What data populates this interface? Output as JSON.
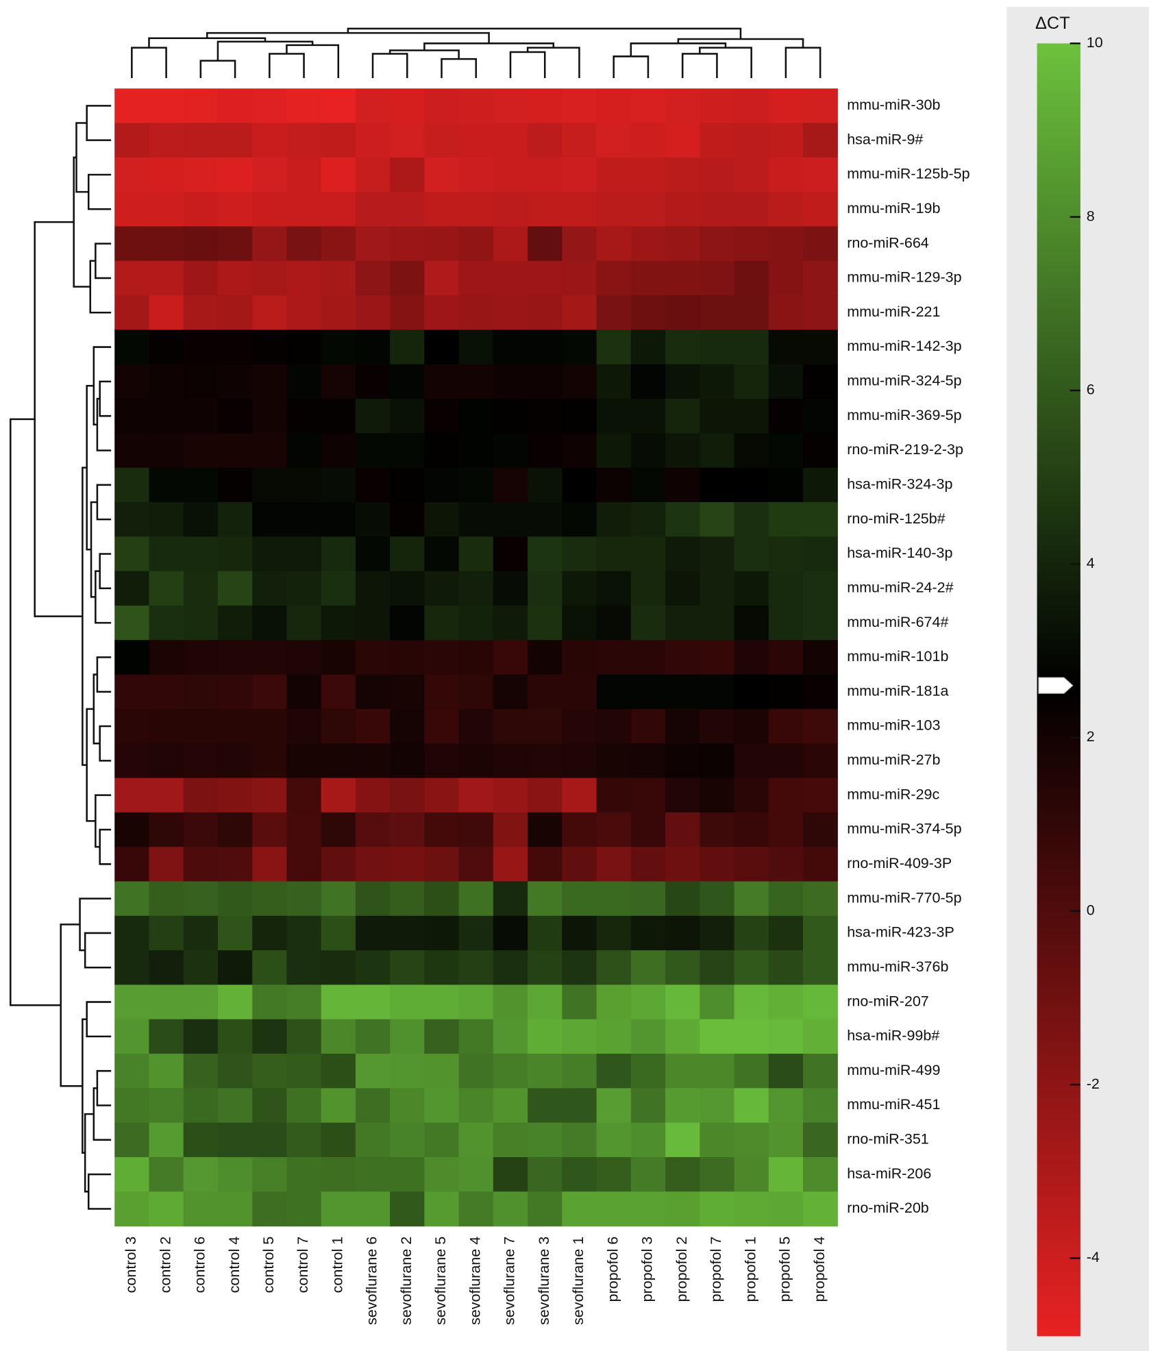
{
  "chart_data": {
    "type": "heatmap",
    "colorbar_label": "ΔCT",
    "columns": [
      "control 3",
      "control 2",
      "control 6",
      "control 4",
      "control 5",
      "control 7",
      "control 1",
      "sevoflurane 6",
      "sevoflurane 2",
      "sevoflurane 5",
      "sevoflurane 4",
      "sevoflurane 7",
      "sevoflurane 3",
      "sevoflurane 1",
      "propofol 6",
      "propofol 3",
      "propofol 2",
      "propofol 7",
      "propofol 1",
      "propofol 5",
      "propofol 4"
    ],
    "rows": [
      "mmu-miR-30b",
      "hsa-miR-9#",
      "mmu-miR-125b-5p",
      "mmu-miR-19b",
      "rno-miR-664",
      "mmu-miR-129-3p",
      "mmu-miR-221",
      "mmu-miR-142-3p",
      "mmu-miR-324-5p",
      "mmu-miR-369-5p",
      "rno-miR-219-2-3p",
      "hsa-miR-324-3p",
      "rno-miR-125b#",
      "hsa-miR-140-3p",
      "mmu-miR-24-2#",
      "mmu-miR-674#",
      "mmu-miR-101b",
      "mmu-miR-181a",
      "mmu-miR-103",
      "mmu-miR-27b",
      "mmu-miR-29c",
      "mmu-miR-374-5p",
      "rno-miR-409-3P",
      "mmu-miR-770-5p",
      "hsa-miR-423-3P",
      "mmu-miR-376b",
      "rno-miR-207",
      "hsa-miR-99b#",
      "mmu-miR-499",
      "mmu-miR-451",
      "rno-miR-351",
      "hsa-miR-206",
      "rno-miR-20b"
    ],
    "values": [
      [
        -4.8,
        -4.8,
        -4.7,
        -4.5,
        -4.6,
        -4.8,
        -4.9,
        -4.2,
        -4.3,
        -4.0,
        -4.1,
        -4.2,
        -4.3,
        -4.4,
        -4.3,
        -4.4,
        -4.2,
        -4.1,
        -4.0,
        -4.3,
        -4.2
      ],
      [
        -3.2,
        -3.5,
        -3.4,
        -3.4,
        -3.9,
        -3.7,
        -3.6,
        -4.0,
        -4.2,
        -3.8,
        -3.9,
        -3.9,
        -3.5,
        -3.8,
        -4.2,
        -4.1,
        -4.3,
        -3.6,
        -3.5,
        -3.6,
        -2.8
      ],
      [
        -4.2,
        -4.3,
        -4.4,
        -4.5,
        -4.2,
        -3.9,
        -4.5,
        -3.8,
        -3.0,
        -4.2,
        -4.0,
        -3.9,
        -3.9,
        -4.0,
        -3.6,
        -3.6,
        -3.4,
        -3.3,
        -3.5,
        -3.9,
        -4.0
      ],
      [
        -4.1,
        -4.1,
        -3.9,
        -4.1,
        -3.9,
        -3.9,
        -3.9,
        -3.3,
        -3.3,
        -3.6,
        -3.6,
        -3.5,
        -3.6,
        -3.6,
        -3.4,
        -3.4,
        -3.2,
        -3.1,
        -3.1,
        -3.4,
        -3.6
      ],
      [
        -1.0,
        -1.0,
        -0.8,
        -1.0,
        -2.2,
        -1.3,
        -1.8,
        -2.6,
        -2.4,
        -2.3,
        -2.1,
        -3.0,
        -0.6,
        -2.2,
        -2.8,
        -2.5,
        -2.3,
        -2.0,
        -1.8,
        -1.7,
        -1.4
      ],
      [
        -3.2,
        -3.2,
        -2.5,
        -3.0,
        -2.8,
        -3.0,
        -2.8,
        -2.0,
        -1.4,
        -3.1,
        -2.5,
        -2.5,
        -2.5,
        -2.4,
        -1.8,
        -1.6,
        -1.6,
        -1.5,
        -1.0,
        -1.7,
        -2.0
      ],
      [
        -2.7,
        -3.9,
        -2.8,
        -2.7,
        -3.4,
        -3.0,
        -2.7,
        -2.4,
        -1.7,
        -2.5,
        -2.3,
        -2.4,
        -2.3,
        -2.7,
        -1.3,
        -1.0,
        -0.8,
        -0.9,
        -0.9,
        -1.8,
        -2.0
      ],
      [
        2.9,
        2.4,
        2.3,
        2.3,
        2.4,
        2.5,
        2.9,
        2.8,
        4.0,
        2.6,
        3.2,
        2.8,
        2.8,
        2.9,
        4.5,
        3.5,
        4.3,
        4.2,
        4.2,
        3.0,
        3.0
      ],
      [
        2.0,
        2.1,
        2.2,
        2.1,
        2.0,
        2.8,
        1.9,
        2.3,
        2.8,
        2.0,
        2.0,
        2.1,
        2.1,
        2.0,
        3.5,
        2.8,
        3.3,
        3.5,
        4.0,
        3.2,
        2.5
      ],
      [
        2.1,
        2.1,
        2.1,
        2.3,
        2.0,
        2.4,
        2.4,
        3.6,
        3.2,
        2.3,
        2.7,
        2.5,
        2.4,
        2.5,
        3.3,
        3.3,
        4.0,
        3.4,
        3.4,
        2.4,
        2.8
      ],
      [
        2.0,
        2.0,
        1.8,
        1.8,
        1.8,
        2.8,
        2.1,
        2.9,
        2.9,
        2.5,
        2.7,
        2.8,
        2.3,
        2.1,
        3.5,
        3.1,
        3.4,
        3.7,
        3.0,
        2.9,
        2.4
      ],
      [
        4.3,
        2.9,
        2.9,
        2.4,
        3.0,
        3.0,
        3.1,
        2.3,
        2.5,
        2.8,
        2.9,
        1.9,
        3.3,
        2.6,
        2.2,
        2.9,
        2.1,
        2.6,
        2.6,
        2.7,
        3.5
      ],
      [
        3.8,
        3.7,
        3.2,
        3.9,
        2.8,
        2.8,
        2.8,
        3.1,
        2.4,
        3.4,
        3.1,
        3.1,
        3.1,
        2.9,
        3.7,
        3.9,
        4.6,
        5.2,
        4.4,
        4.8,
        4.8
      ],
      [
        5.0,
        4.2,
        4.2,
        4.1,
        3.6,
        3.6,
        4.2,
        2.9,
        4.0,
        2.9,
        4.3,
        2.3,
        4.6,
        4.3,
        4.1,
        4.1,
        3.6,
        3.8,
        4.4,
        4.3,
        4.2
      ],
      [
        3.7,
        5.0,
        4.3,
        5.2,
        3.8,
        3.9,
        4.4,
        3.4,
        3.3,
        3.6,
        3.8,
        3.1,
        4.4,
        3.5,
        3.3,
        4.1,
        3.4,
        3.8,
        3.5,
        4.2,
        4.4
      ],
      [
        5.8,
        4.4,
        4.3,
        3.7,
        3.2,
        4.1,
        3.5,
        3.4,
        2.8,
        4.1,
        3.9,
        3.6,
        4.5,
        3.3,
        3.0,
        4.3,
        3.8,
        3.8,
        3.0,
        4.2,
        4.4
      ],
      [
        2.7,
        1.7,
        1.6,
        1.5,
        1.5,
        1.6,
        1.8,
        1.2,
        1.3,
        1.2,
        1.3,
        0.8,
        2.0,
        1.3,
        1.2,
        1.2,
        1.0,
        0.9,
        1.6,
        1.2,
        2.0
      ],
      [
        1.0,
        1.0,
        1.1,
        1.0,
        0.7,
        2.0,
        0.7,
        1.9,
        1.8,
        0.9,
        1.1,
        1.9,
        1.2,
        1.2,
        2.8,
        2.8,
        2.8,
        2.8,
        2.6,
        2.5,
        2.3
      ],
      [
        1.2,
        1.3,
        1.3,
        1.3,
        1.3,
        1.6,
        1.1,
        0.8,
        1.9,
        0.8,
        1.5,
        1.1,
        1.1,
        1.4,
        1.5,
        1.0,
        1.9,
        1.5,
        1.7,
        0.8,
        0.6
      ],
      [
        1.4,
        1.5,
        1.4,
        1.5,
        1.3,
        1.8,
        1.8,
        1.8,
        2.0,
        1.6,
        1.7,
        1.6,
        1.5,
        1.6,
        1.8,
        1.9,
        2.1,
        2.2,
        1.5,
        1.5,
        1.2
      ],
      [
        -2.6,
        -2.6,
        -1.4,
        -1.6,
        -1.8,
        0.4,
        -2.8,
        -1.7,
        -1.3,
        -1.8,
        -2.6,
        -2.3,
        -1.8,
        -2.8,
        0.9,
        0.8,
        1.5,
        1.8,
        1.2,
        0.4,
        0.3
      ],
      [
        1.8,
        1.1,
        0.7,
        1.1,
        -0.3,
        0.3,
        1.1,
        -0.2,
        -0.4,
        0.4,
        0.5,
        -1.6,
        1.8,
        0.4,
        0.2,
        0.8,
        -0.6,
        0.6,
        0.8,
        0.4,
        1.1
      ],
      [
        0.8,
        -1.5,
        0.1,
        0.0,
        -1.8,
        0.3,
        -0.5,
        -1.1,
        -1.2,
        -0.9,
        0.0,
        -2.3,
        0.4,
        -0.5,
        -1.3,
        -0.6,
        -1.0,
        -0.5,
        -0.3,
        0.0,
        0.4
      ],
      [
        7.0,
        6.2,
        6.3,
        6.0,
        6.2,
        6.3,
        7.0,
        5.8,
        6.2,
        5.6,
        6.9,
        4.2,
        7.2,
        6.6,
        6.6,
        6.5,
        5.3,
        5.9,
        7.3,
        6.4,
        6.7
      ],
      [
        4.2,
        5.0,
        4.3,
        5.8,
        4.0,
        4.4,
        5.6,
        3.6,
        3.6,
        3.5,
        4.2,
        3.1,
        4.8,
        3.4,
        4.1,
        3.5,
        3.4,
        3.8,
        5.1,
        4.5,
        6.0
      ],
      [
        4.2,
        3.8,
        4.5,
        3.6,
        5.6,
        4.4,
        4.3,
        4.6,
        5.2,
        4.7,
        5.0,
        4.4,
        5.1,
        4.6,
        5.7,
        6.8,
        6.0,
        5.2,
        6.0,
        5.4,
        6.0
      ],
      [
        8.6,
        8.6,
        8.6,
        9.4,
        7.2,
        7.4,
        9.5,
        9.5,
        9.2,
        9.2,
        9.0,
        8.2,
        9.0,
        7.0,
        8.7,
        9.0,
        9.6,
        8.0,
        9.6,
        9.3,
        9.6
      ],
      [
        8.3,
        5.5,
        4.4,
        5.6,
        4.6,
        5.7,
        7.8,
        7.0,
        8.1,
        6.3,
        7.2,
        8.3,
        9.2,
        9.0,
        8.8,
        8.3,
        9.1,
        9.8,
        9.8,
        9.7,
        9.3
      ],
      [
        7.6,
        8.2,
        6.3,
        5.8,
        6.2,
        6.1,
        5.6,
        8.4,
        8.3,
        8.2,
        7.0,
        7.4,
        7.7,
        7.4,
        5.9,
        6.6,
        7.8,
        7.8,
        7.0,
        5.5,
        7.0
      ],
      [
        7.2,
        7.4,
        6.6,
        7.0,
        5.8,
        6.9,
        8.2,
        6.8,
        7.8,
        8.3,
        7.7,
        8.2,
        5.9,
        5.9,
        8.6,
        7.0,
        8.5,
        8.4,
        9.6,
        8.3,
        7.6
      ],
      [
        6.7,
        8.5,
        5.6,
        5.5,
        5.5,
        6.1,
        5.6,
        7.2,
        7.6,
        7.2,
        8.2,
        7.5,
        7.6,
        7.3,
        8.3,
        8.0,
        9.7,
        7.8,
        7.9,
        8.2,
        6.5
      ],
      [
        9.2,
        7.3,
        8.4,
        8.0,
        7.5,
        6.9,
        6.8,
        6.9,
        6.9,
        7.9,
        8.1,
        5.1,
        6.5,
        5.9,
        6.2,
        7.3,
        6.2,
        6.7,
        7.8,
        9.5,
        7.9
      ],
      [
        8.7,
        9.1,
        8.2,
        8.2,
        6.8,
        6.9,
        8.3,
        8.3,
        6.0,
        8.5,
        7.3,
        8.1,
        7.2,
        8.8,
        8.8,
        8.8,
        8.7,
        9.2,
        9.1,
        9.0,
        9.4
      ]
    ],
    "zlim": [
      -4.9,
      10
    ],
    "zticks": [
      -4,
      -2,
      0,
      2,
      4,
      6,
      8,
      10
    ],
    "colormap": [
      "#e82222",
      "#000000",
      "#6cc23c"
    ],
    "colormap_center": 2.6
  }
}
